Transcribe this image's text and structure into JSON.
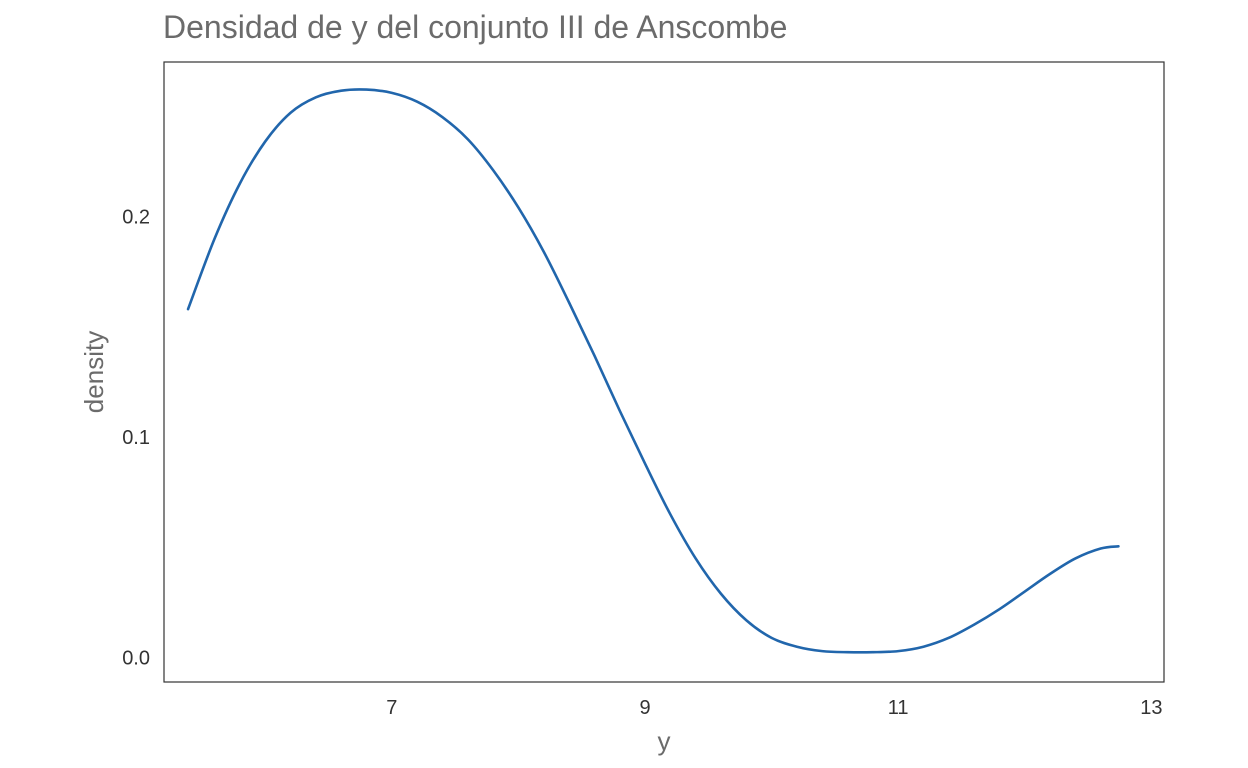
{
  "chart_data": {
    "type": "line",
    "title": "Densidad de y del conjunto III de Anscombe",
    "xlabel": "y",
    "ylabel": "density",
    "xlim": [
      5.2,
      13.1
    ],
    "ylim": [
      -0.011,
      0.27
    ],
    "grid": false,
    "x_ticks": [
      7,
      9,
      11,
      13
    ],
    "x_tick_labels": [
      "7",
      "9",
      "11",
      "13"
    ],
    "y_ticks": [
      0.0,
      0.1,
      0.2
    ],
    "y_tick_labels": [
      "0.0",
      "0.1",
      "0.2"
    ],
    "series": [
      {
        "color": "#2166ac",
        "x": [
          5.39,
          5.6,
          5.8,
          6.0,
          6.2,
          6.4,
          6.6,
          6.8,
          7.0,
          7.2,
          7.4,
          7.6,
          7.8,
          8.0,
          8.2,
          8.4,
          8.6,
          8.8,
          9.0,
          9.2,
          9.4,
          9.6,
          9.8,
          10.0,
          10.2,
          10.4,
          10.6,
          10.8,
          11.0,
          11.2,
          11.4,
          11.6,
          11.8,
          12.0,
          12.2,
          12.4,
          12.6,
          12.74
        ],
        "y": [
          0.158,
          0.19,
          0.215,
          0.234,
          0.247,
          0.254,
          0.257,
          0.2575,
          0.256,
          0.252,
          0.245,
          0.235,
          0.221,
          0.204,
          0.184,
          0.161,
          0.137,
          0.112,
          0.088,
          0.065,
          0.045,
          0.029,
          0.017,
          0.009,
          0.005,
          0.003,
          0.0025,
          0.0025,
          0.003,
          0.005,
          0.009,
          0.015,
          0.022,
          0.03,
          0.038,
          0.045,
          0.0495,
          0.0505
        ]
      }
    ]
  }
}
